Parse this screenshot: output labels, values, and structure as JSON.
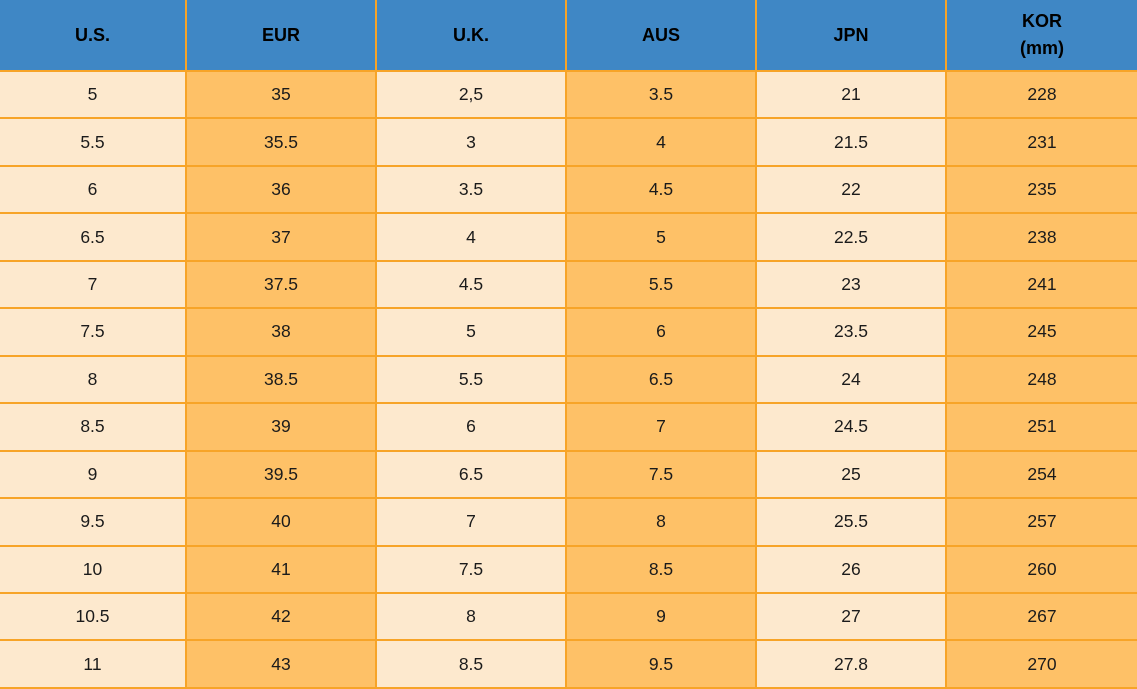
{
  "colors": {
    "header-blue": "#3f87c5",
    "cell-cream": "#fde9ce",
    "cell-orange": "#fec167",
    "border-orange": "#f7a428",
    "text-dark": "#1b1b1b"
  },
  "table": {
    "columns": [
      {
        "label": "U.S."
      },
      {
        "label": "EUR"
      },
      {
        "label": "U.K."
      },
      {
        "label": "AUS"
      },
      {
        "label": "JPN"
      },
      {
        "label": "KOR\n(mm)"
      }
    ],
    "rows": [
      [
        "5",
        "35",
        "2,5",
        "3.5",
        "21",
        "228"
      ],
      [
        "5.5",
        "35.5",
        "3",
        "4",
        "21.5",
        "231"
      ],
      [
        "6",
        "36",
        "3.5",
        "4.5",
        "22",
        "235"
      ],
      [
        "6.5",
        "37",
        "4",
        "5",
        "22.5",
        "238"
      ],
      [
        "7",
        "37.5",
        "4.5",
        "5.5",
        "23",
        "241"
      ],
      [
        "7.5",
        "38",
        "5",
        "6",
        "23.5",
        "245"
      ],
      [
        "8",
        "38.5",
        "5.5",
        "6.5",
        "24",
        "248"
      ],
      [
        "8.5",
        "39",
        "6",
        "7",
        "24.5",
        "251"
      ],
      [
        "9",
        "39.5",
        "6.5",
        "7.5",
        "25",
        "254"
      ],
      [
        "9.5",
        "40",
        "7",
        "8",
        "25.5",
        "257"
      ],
      [
        "10",
        "41",
        "7.5",
        "8.5",
        "26",
        "260"
      ],
      [
        "10.5",
        "42",
        "8",
        "9",
        "27",
        "267"
      ],
      [
        "11",
        "43",
        "8.5",
        "9.5",
        "27.8",
        "270"
      ]
    ]
  }
}
